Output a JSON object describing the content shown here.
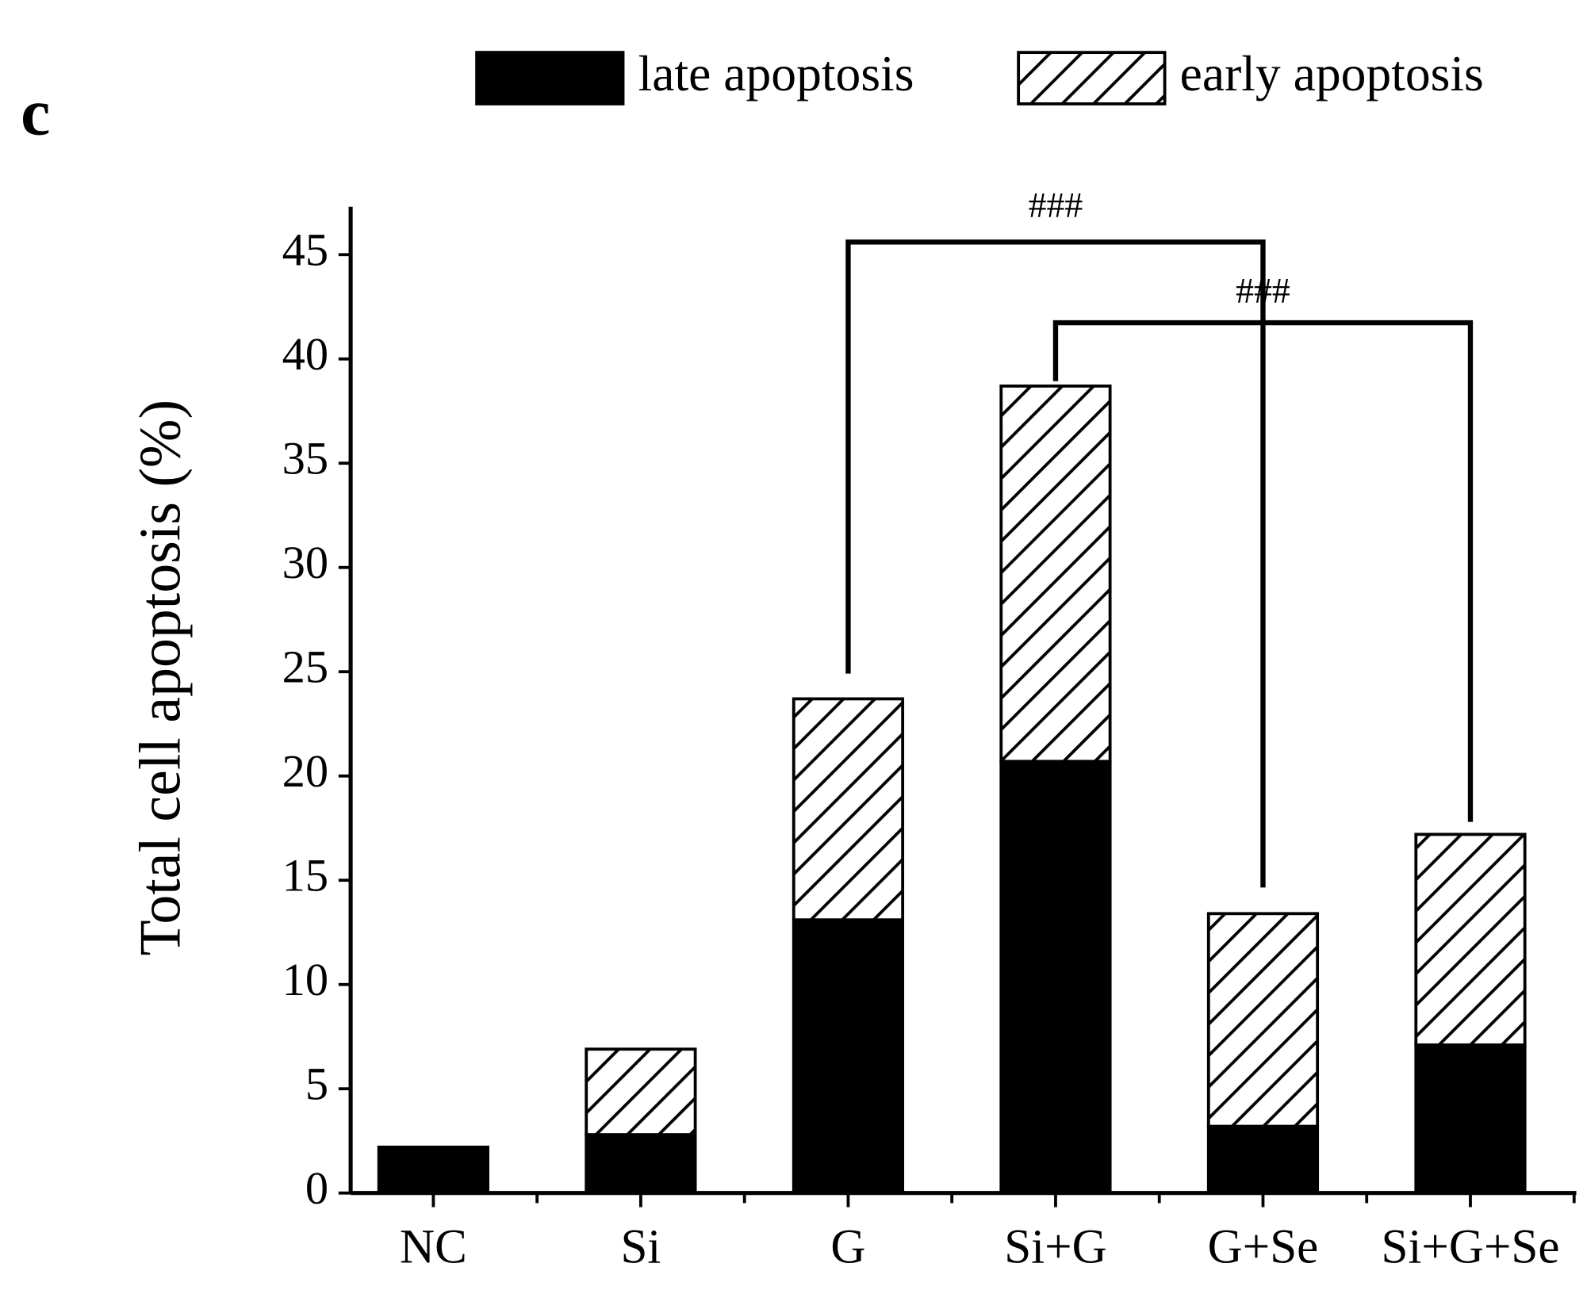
{
  "chart_data": {
    "type": "stacked-bar",
    "panel_label": "c",
    "ylabel": "Total cell apoptosis (%)",
    "categories": [
      "NC",
      "Si",
      "G",
      "Si+G",
      "G+Se",
      "Si+G+Se"
    ],
    "series": [
      {
        "name": "late apoptosis",
        "color": "#000000",
        "hatch": false,
        "values": [
          2.2,
          2.8,
          13.1,
          20.7,
          3.2,
          7.1
        ]
      },
      {
        "name": "early apoptosis",
        "color": "#000000",
        "hatch": true,
        "values": [
          0,
          4.1,
          10.6,
          18.0,
          10.2,
          10.1
        ]
      }
    ],
    "ylim": [
      0,
      47.3
    ],
    "yticks": [
      0,
      5,
      10,
      15,
      20,
      25,
      30,
      35,
      40,
      45
    ],
    "annotations": [
      "###",
      "###"
    ]
  }
}
